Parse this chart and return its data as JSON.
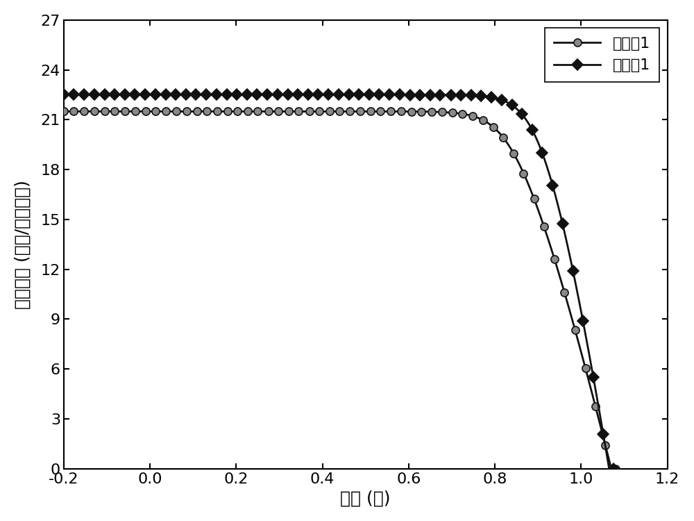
{
  "xlabel": "电压 (伏)",
  "ylabel": "电流密度 (毫安/平方厘米)",
  "xlim": [
    -0.2,
    1.2
  ],
  "ylim": [
    0,
    27
  ],
  "xticks": [
    -0.2,
    0.0,
    0.2,
    0.4,
    0.6,
    0.8,
    1.0,
    1.2
  ],
  "yticks": [
    0,
    3,
    6,
    9,
    12,
    15,
    18,
    21,
    24,
    27
  ],
  "line_color": "#111111",
  "background_color": "#ffffff",
  "series1": {
    "label": "对比例1",
    "Jsc": 21.5,
    "Voc": 1.07,
    "n_diode": 1.35,
    "Rs": 0.008,
    "marker": "o",
    "marker_facecolor": "#888888",
    "marker_edgecolor": "#111111",
    "n_markers": 55
  },
  "series2": {
    "label": "实施例1",
    "Jsc": 22.5,
    "Voc": 1.065,
    "n_diode": 1.25,
    "Rs": 0.005,
    "marker": "D",
    "marker_facecolor": "#111111",
    "marker_edgecolor": "#111111",
    "n_markers": 55
  },
  "xlabel_fontsize": 18,
  "ylabel_fontsize": 18,
  "tick_fontsize": 16,
  "legend_fontsize": 16,
  "linewidth": 2.0,
  "markersize": 8
}
